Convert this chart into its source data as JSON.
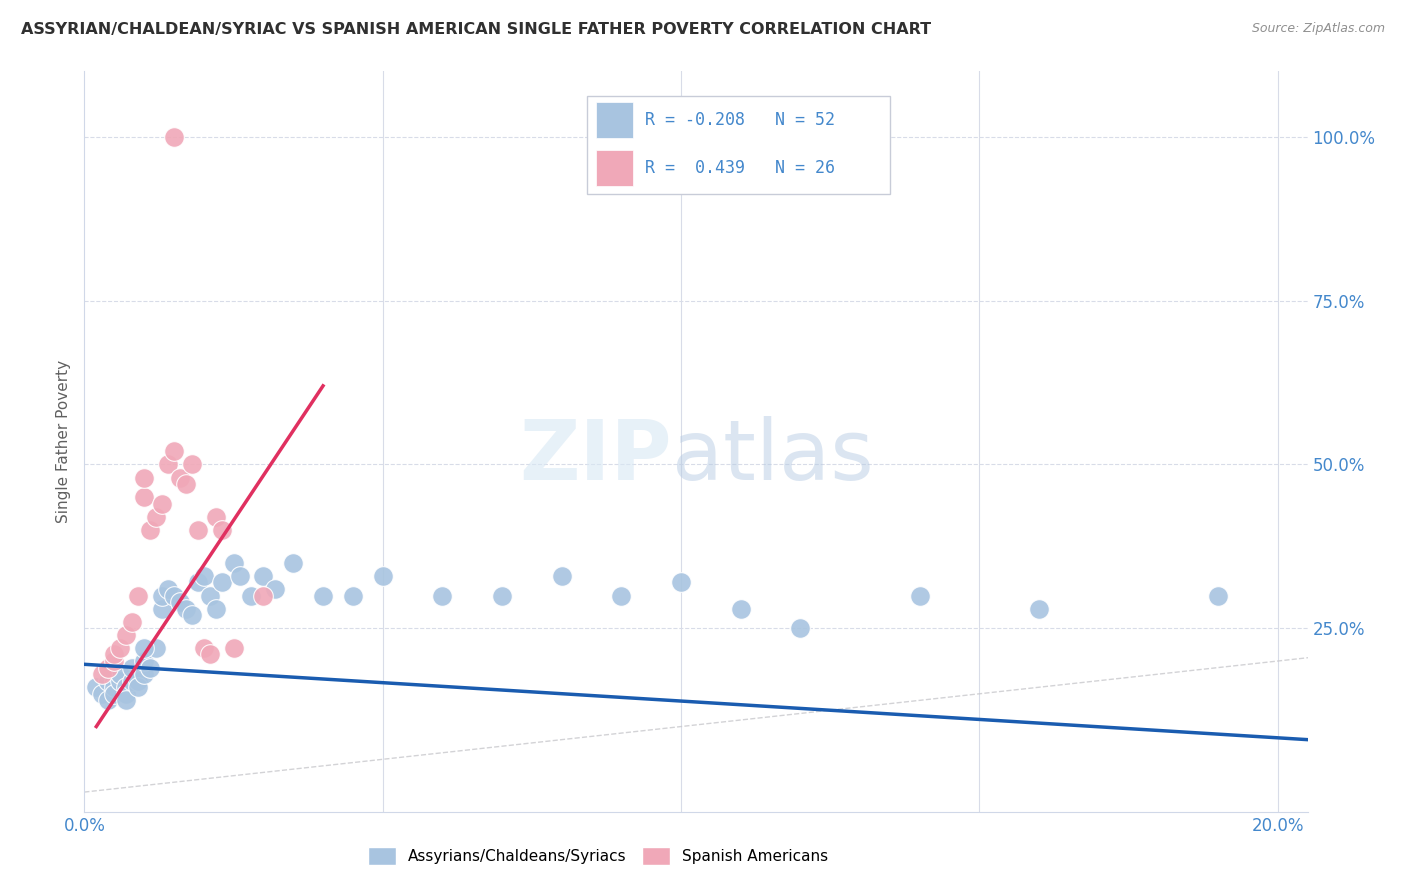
{
  "title": "ASSYRIAN/CHALDEAN/SYRIAC VS SPANISH AMERICAN SINGLE FATHER POVERTY CORRELATION CHART",
  "source": "Source: ZipAtlas.com",
  "ylabel": "Single Father Poverty",
  "legend_r_blue": "-0.208",
  "legend_n_blue": "52",
  "legend_r_pink": "0.439",
  "legend_n_pink": "26",
  "blue_color": "#a8c4e0",
  "pink_color": "#f0a8b8",
  "blue_line_color": "#1a5cb0",
  "pink_line_color": "#e03060",
  "diagonal_color": "#c8c8cc",
  "xlim": [
    0.0,
    0.205
  ],
  "ylim": [
    -0.03,
    1.1
  ],
  "blue_scatter_x": [
    0.002,
    0.003,
    0.004,
    0.004,
    0.005,
    0.005,
    0.005,
    0.006,
    0.006,
    0.007,
    0.007,
    0.007,
    0.008,
    0.008,
    0.009,
    0.009,
    0.01,
    0.01,
    0.011,
    0.012,
    0.013,
    0.013,
    0.014,
    0.015,
    0.016,
    0.017,
    0.018,
    0.019,
    0.02,
    0.021,
    0.022,
    0.023,
    0.025,
    0.026,
    0.028,
    0.03,
    0.032,
    0.035,
    0.04,
    0.045,
    0.05,
    0.06,
    0.07,
    0.08,
    0.09,
    0.1,
    0.11,
    0.12,
    0.14,
    0.16,
    0.19,
    0.01
  ],
  "blue_scatter_y": [
    0.16,
    0.15,
    0.14,
    0.17,
    0.17,
    0.16,
    0.15,
    0.17,
    0.18,
    0.16,
    0.15,
    0.14,
    0.17,
    0.19,
    0.17,
    0.16,
    0.18,
    0.2,
    0.19,
    0.22,
    0.28,
    0.3,
    0.31,
    0.3,
    0.29,
    0.28,
    0.27,
    0.32,
    0.33,
    0.3,
    0.28,
    0.32,
    0.35,
    0.33,
    0.3,
    0.33,
    0.31,
    0.35,
    0.3,
    0.3,
    0.33,
    0.3,
    0.3,
    0.33,
    0.3,
    0.32,
    0.28,
    0.25,
    0.3,
    0.28,
    0.3,
    0.22
  ],
  "pink_scatter_x": [
    0.003,
    0.004,
    0.005,
    0.005,
    0.006,
    0.007,
    0.008,
    0.009,
    0.01,
    0.01,
    0.011,
    0.012,
    0.013,
    0.014,
    0.015,
    0.015,
    0.016,
    0.017,
    0.018,
    0.019,
    0.02,
    0.021,
    0.022,
    0.023,
    0.025,
    0.03
  ],
  "pink_scatter_y": [
    0.18,
    0.19,
    0.2,
    0.21,
    0.22,
    0.24,
    0.26,
    0.3,
    0.45,
    0.48,
    0.4,
    0.42,
    0.44,
    0.5,
    0.52,
    1.0,
    0.48,
    0.47,
    0.5,
    0.4,
    0.22,
    0.21,
    0.42,
    0.4,
    0.22,
    0.3
  ],
  "pink_line_x0": 0.002,
  "pink_line_x1": 0.04,
  "pink_line_y0": 0.1,
  "pink_line_y1": 0.62,
  "blue_line_x0": 0.0,
  "blue_line_x1": 0.205,
  "blue_line_y0": 0.195,
  "blue_line_y1": 0.08
}
